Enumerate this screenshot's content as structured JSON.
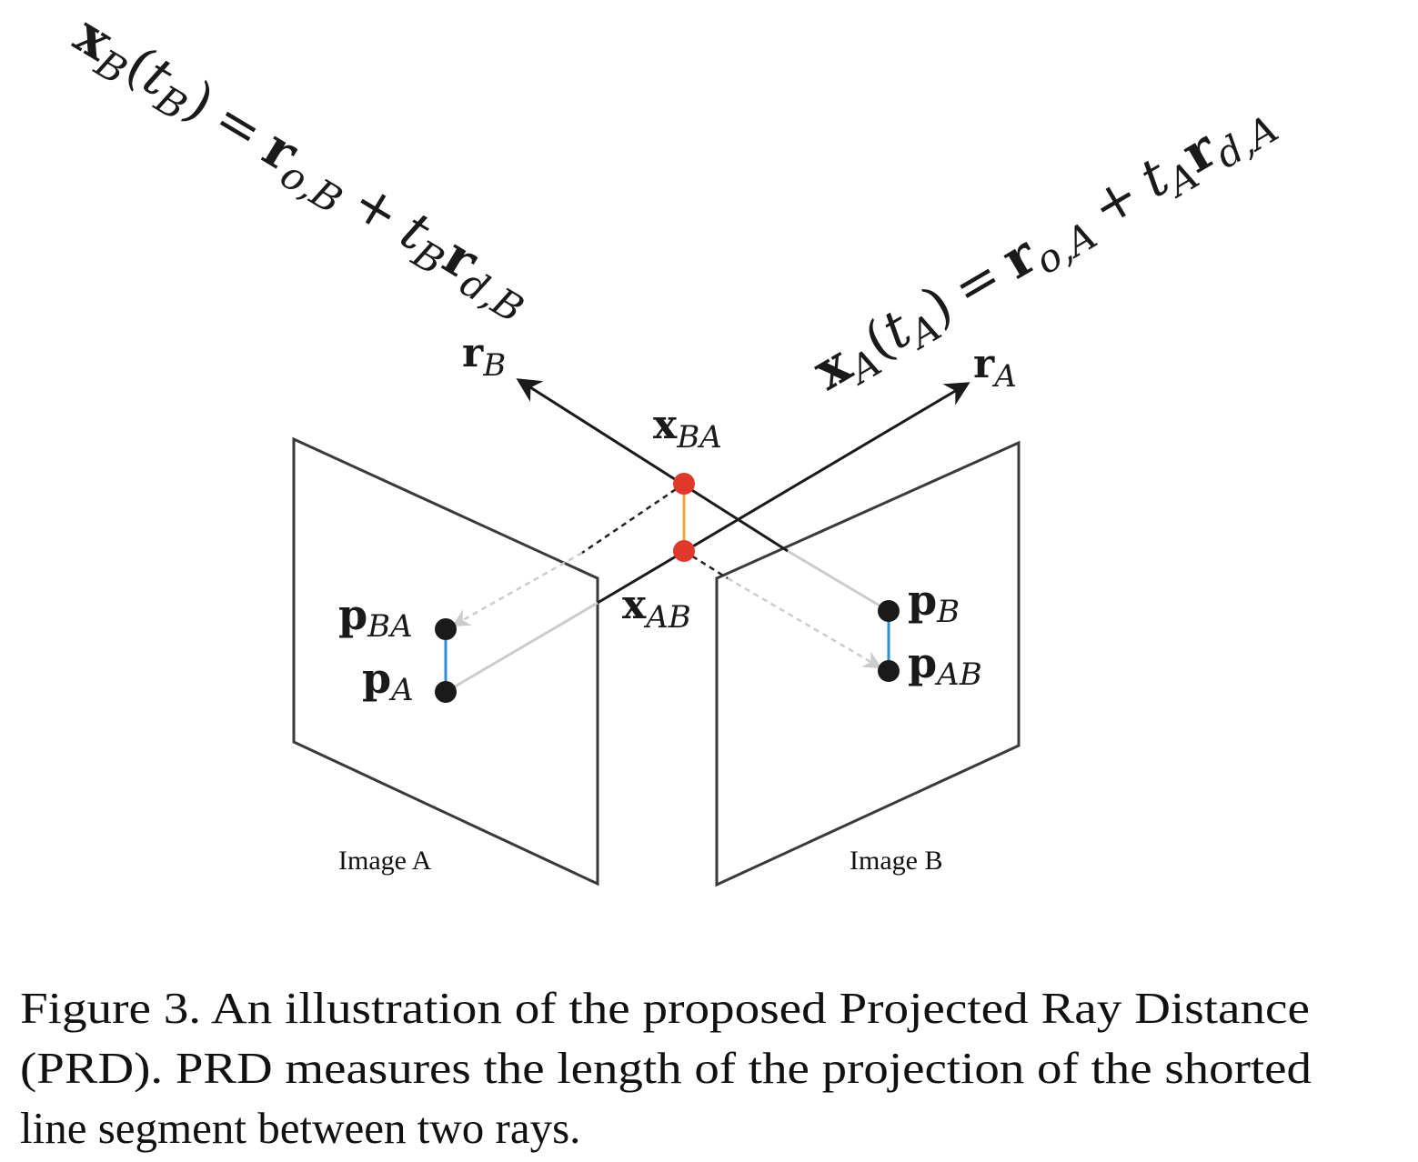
{
  "equations": {
    "ray_b": {
      "lhs_var": "x",
      "lhs_sub": "B",
      "lhs_open": "(",
      "lhs_param": "t",
      "lhs_param_sub": "B",
      "lhs_close": ")",
      "equals": "=",
      "origin_var": "r",
      "origin_sub": "o,B",
      "plus": "+",
      "t_var": "t",
      "t_sub": "B",
      "dir_var": "r",
      "dir_sub": "d,B"
    },
    "ray_a": {
      "lhs_var": "x",
      "lhs_sub": "A",
      "lhs_open": "(",
      "lhs_param": "t",
      "lhs_param_sub": "A",
      "lhs_close": ")",
      "equals": "=",
      "origin_var": "r",
      "origin_sub": "o,A",
      "plus": "+",
      "t_var": "t",
      "t_sub": "A",
      "dir_var": "r",
      "dir_sub": "d,A"
    }
  },
  "labels": {
    "r_b": {
      "var": "r",
      "sub": "B"
    },
    "r_a": {
      "var": "r",
      "sub": "A"
    },
    "x_ba": {
      "var": "x",
      "sub": "BA"
    },
    "x_ab": {
      "var": "x",
      "sub": "AB"
    },
    "p_ba": {
      "var": "p",
      "sub": "BA"
    },
    "p_a": {
      "var": "p",
      "sub": "A"
    },
    "p_b": {
      "var": "p",
      "sub": "B"
    },
    "p_ab": {
      "var": "p",
      "sub": "AB"
    }
  },
  "planes": {
    "image_a": "Image A",
    "image_b": "Image B"
  },
  "caption": {
    "line1": "Figure 3. An illustration of the proposed Projected Ray Distance",
    "line2": "(PRD). PRD measures the length of the projection of the shorted",
    "line3": "line segment between two rays."
  },
  "colors": {
    "ray": "#1a1a1a",
    "projection_ray": "#cccccc",
    "plane_edge": "#3a3a3a",
    "point": "#1a1a1a",
    "intersection_point": "#e0392b",
    "shortest_segment": "#f0a830",
    "prd_segment": "#2a8fd0",
    "dashed": "#222222"
  }
}
